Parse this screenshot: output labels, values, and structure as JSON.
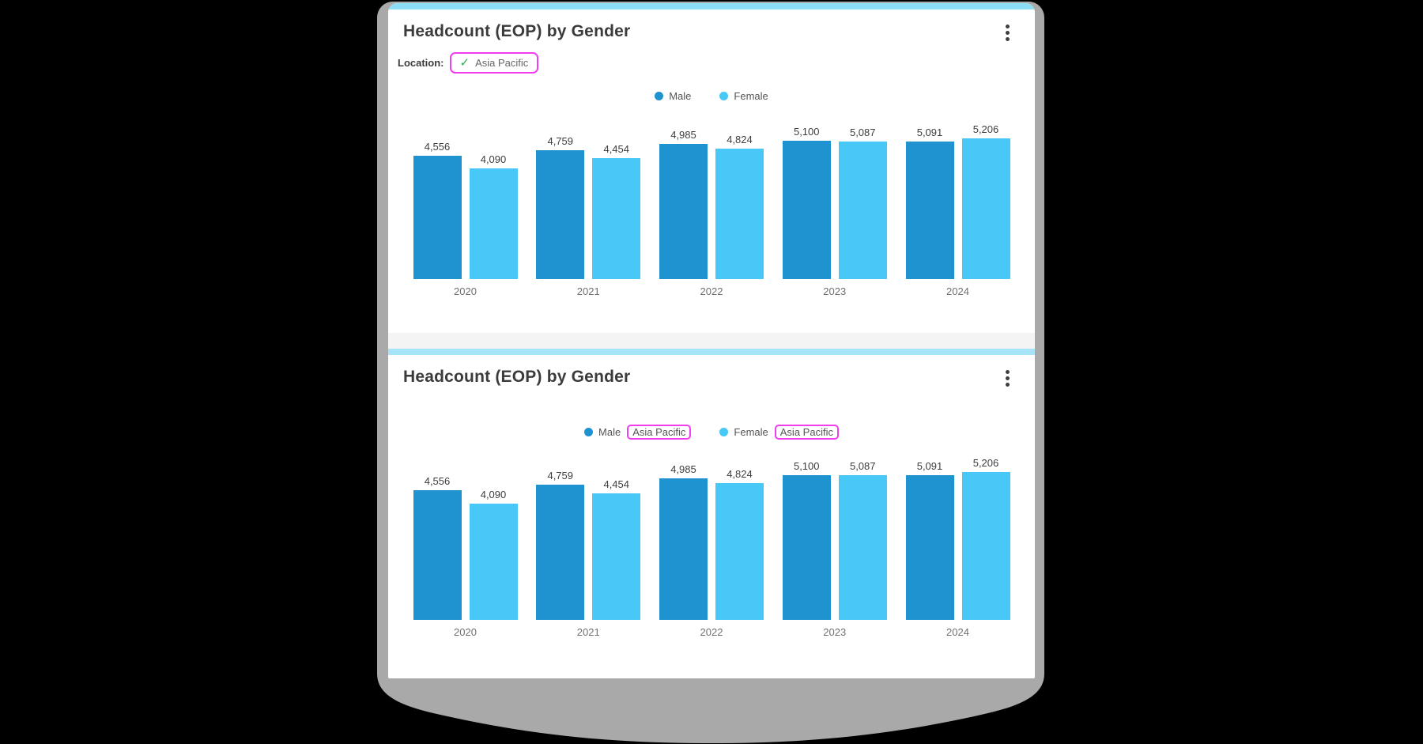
{
  "page": {
    "background_color": "#000000",
    "window_color": "#ffffff",
    "shadow_color": "#a9a9a9",
    "tile_gap_color": "#f4f4f5",
    "highlight_color": "#f23cf2"
  },
  "cards": [
    {
      "title": "Headcount (EOP) by Gender",
      "accent_color": "#8bdcf4",
      "menu_icon": "kebab-menu",
      "filter": {
        "label": "Location:",
        "value": "Asia Pacific",
        "check_icon": "✓",
        "check_color": "#2fae52",
        "highlight_color": "#f23cf2"
      }
    },
    {
      "title": "Headcount (EOP) by Gender",
      "accent_color": "#a6e4f7",
      "menu_icon": "kebab-menu",
      "filter": null
    }
  ],
  "chart_data": [
    {
      "type": "bar",
      "title": "Headcount (EOP) by Gender",
      "categories": [
        "2020",
        "2021",
        "2022",
        "2023",
        "2024"
      ],
      "series": [
        {
          "name": "Male",
          "color": "#1e93cf",
          "values": [
            4556,
            4759,
            4985,
            5100,
            5091
          ]
        },
        {
          "name": "Female",
          "color": "#47c8f6",
          "values": [
            4090,
            4454,
            4824,
            5087,
            5206
          ]
        }
      ],
      "legend_suffix": null,
      "value_labels_shown": true,
      "xlabel": "",
      "ylabel": "",
      "ylim": [
        0,
        5400
      ],
      "grid": false,
      "legend_position": "top"
    },
    {
      "type": "bar",
      "title": "Headcount (EOP) by Gender",
      "categories": [
        "2020",
        "2021",
        "2022",
        "2023",
        "2024"
      ],
      "series": [
        {
          "name": "Male",
          "color": "#1e93cf",
          "values": [
            4556,
            4759,
            4985,
            5100,
            5091
          ]
        },
        {
          "name": "Female",
          "color": "#47c8f6",
          "values": [
            4090,
            4454,
            4824,
            5087,
            5206
          ]
        }
      ],
      "legend_suffix": "Asia Pacific",
      "value_labels_shown": true,
      "xlabel": "",
      "ylabel": "",
      "ylim": [
        0,
        5400
      ],
      "grid": false,
      "legend_position": "top"
    }
  ]
}
